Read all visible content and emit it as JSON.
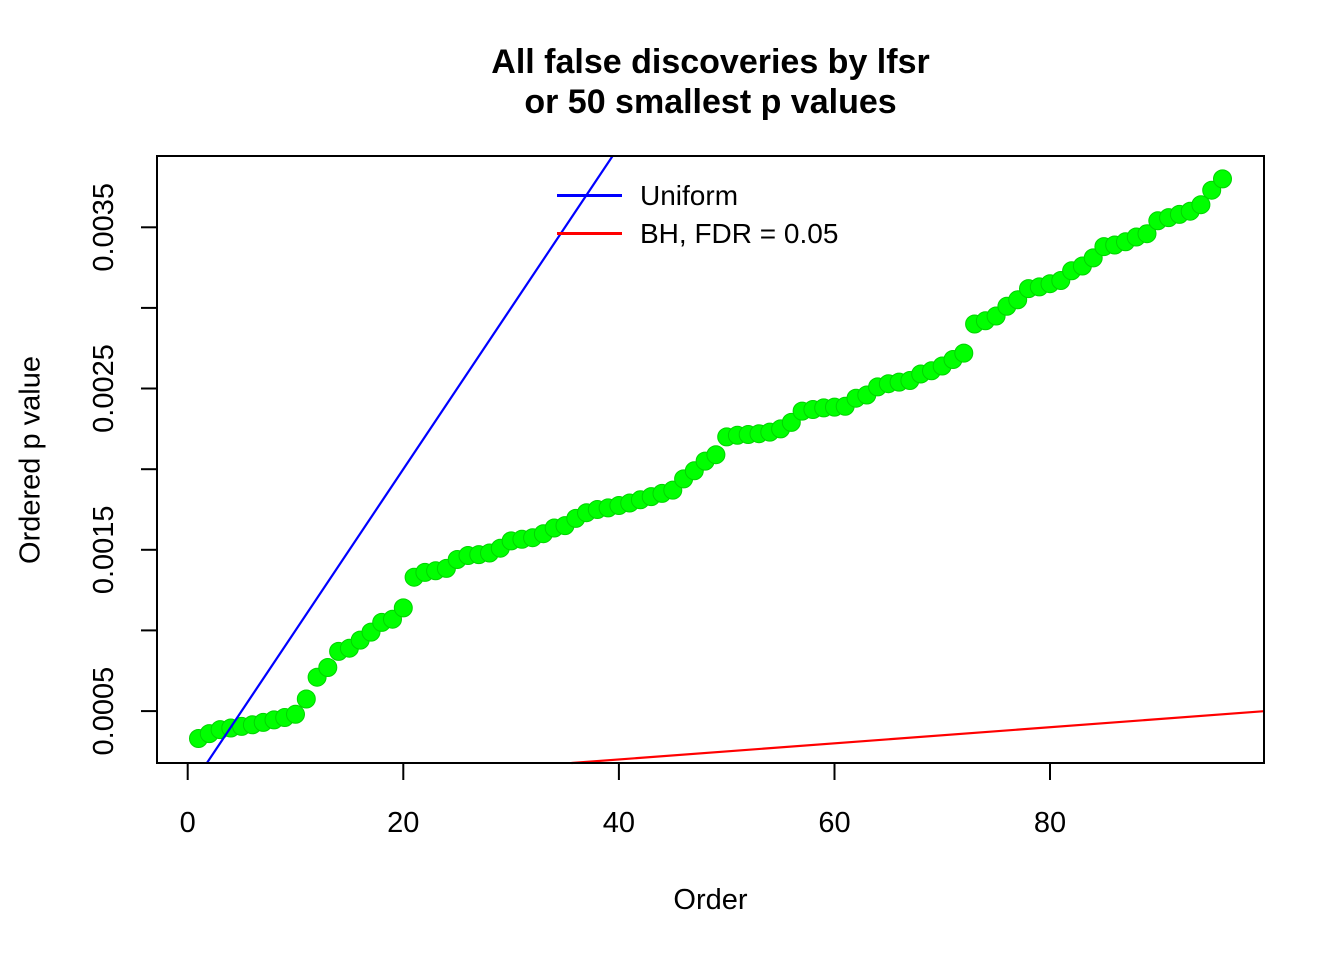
{
  "header": {
    "title_line1": "All false discoveries by lfsr",
    "title_line2": "or 50 smallest p values"
  },
  "chart_data": {
    "type": "scatter",
    "title": "All false discoveries by lfsr or 50 smallest p values",
    "xlabel": "Order",
    "ylabel": "Ordered p value",
    "order_start": 1,
    "n_points": 96,
    "ordered_p_values": [
      0.00033,
      0.00036,
      0.000385,
      0.000395,
      0.000405,
      0.000415,
      0.00043,
      0.000445,
      0.00046,
      0.00048,
      0.000575,
      0.00071,
      0.00077,
      0.00087,
      0.00089,
      0.00094,
      0.00099,
      0.00105,
      0.00107,
      0.00114,
      0.00133,
      0.00136,
      0.00137,
      0.001385,
      0.00144,
      0.001465,
      0.00147,
      0.00148,
      0.00151,
      0.001555,
      0.001565,
      0.001575,
      0.0016,
      0.001635,
      0.00165,
      0.001695,
      0.00173,
      0.00175,
      0.00176,
      0.001775,
      0.00179,
      0.00181,
      0.00183,
      0.00185,
      0.00187,
      0.00194,
      0.00199,
      0.00205,
      0.00209,
      0.0022,
      0.00221,
      0.002215,
      0.00222,
      0.00223,
      0.00225,
      0.00229,
      0.00236,
      0.00237,
      0.00238,
      0.002385,
      0.00239,
      0.00244,
      0.00246,
      0.00251,
      0.00253,
      0.00254,
      0.00255,
      0.00259,
      0.00261,
      0.00264,
      0.00268,
      0.00272,
      0.0029,
      0.00292,
      0.00295,
      0.00301,
      0.00305,
      0.00312,
      0.00313,
      0.00315,
      0.00317,
      0.00323,
      0.00326,
      0.00331,
      0.00338,
      0.00339,
      0.00341,
      0.00344,
      0.00346,
      0.00354,
      0.00356,
      0.00358,
      0.0036,
      0.00364,
      0.00373,
      0.0038
    ],
    "point_color": "#00FF00",
    "point_stroke": "#00D400",
    "point_radius": 9,
    "series": [
      {
        "name": "Uniform",
        "type": "line",
        "color": "#0000FF",
        "slope": 0.0001,
        "intercept": 0
      },
      {
        "name": "BH, FDR = 0.05",
        "type": "line",
        "color": "#FF0000",
        "slope": 5e-06,
        "intercept": 0
      }
    ],
    "xlim": [
      -2.85,
      99.85
    ],
    "ylim": [
      0.000178,
      0.003942
    ],
    "x_ticks": [
      {
        "v": 0,
        "label": "0"
      },
      {
        "v": 20,
        "label": "20"
      },
      {
        "v": 40,
        "label": "40"
      },
      {
        "v": 60,
        "label": "60"
      },
      {
        "v": 80,
        "label": "80"
      }
    ],
    "y_ticks": [
      {
        "v": 0.0005,
        "label": "0.0005"
      },
      {
        "v": 0.001,
        "label": ""
      },
      {
        "v": 0.0015,
        "label": "0.0015"
      },
      {
        "v": 0.002,
        "label": ""
      },
      {
        "v": 0.0025,
        "label": "0.0025"
      },
      {
        "v": 0.003,
        "label": ""
      },
      {
        "v": 0.0035,
        "label": "0.0035"
      }
    ],
    "grid": false,
    "legend_position": "top-center-inside",
    "legend_entries": [
      {
        "label": "Uniform",
        "color": "#0000FF"
      },
      {
        "label": "BH, FDR = 0.05",
        "color": "#FF0000"
      }
    ]
  }
}
